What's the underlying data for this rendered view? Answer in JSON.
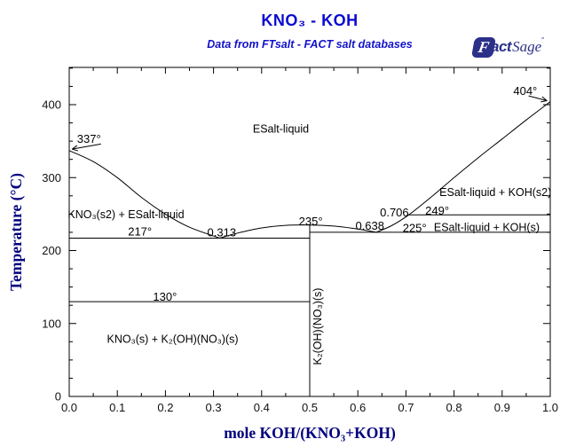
{
  "header": {
    "title": "KNO₃ - KOH",
    "subtitle": "Data from FTsalt - FACT salt databases"
  },
  "logo": {
    "f": "F",
    "act": "act",
    "sage": "Sage",
    "tm": "″"
  },
  "colors": {
    "title_blue": "#0a0ad2",
    "subtitle_blue": "#1212cc",
    "axis_title_navy": "#00007d",
    "logo_navy": "#2b3088",
    "line_color": "#000000",
    "background": "#ffffff"
  },
  "chart_data": {
    "type": "line",
    "subtype": "binary-phase-diagram",
    "title": "KNO₃ - KOH",
    "xlabel": "mole KOH/(KNO₃+KOH)",
    "ylabel": "Temperature (°C)",
    "xlim": [
      0.0,
      1.0
    ],
    "ylim": [
      0,
      451
    ],
    "grid": false,
    "x_major_ticks": [
      0.0,
      0.1,
      0.2,
      0.3,
      0.4,
      0.5,
      0.6,
      0.7,
      0.8,
      0.9,
      1.0
    ],
    "x_tick_labels": [
      "0.0",
      "0.1",
      "0.2",
      "0.3",
      "0.4",
      "0.5",
      "0.6",
      "0.7",
      "0.8",
      "0.9",
      "1.0"
    ],
    "x_minor_step": 0.05,
    "y_major_ticks": [
      0,
      100,
      200,
      300,
      400
    ],
    "y_minor_step": 25,
    "series": [
      {
        "name": "liquidus-KNO3-s2",
        "points": [
          [
            0,
            337
          ],
          [
            0.05,
            322
          ],
          [
            0.1,
            300
          ],
          [
            0.15,
            273
          ],
          [
            0.2,
            250
          ],
          [
            0.25,
            232
          ],
          [
            0.313,
            217
          ]
        ]
      },
      {
        "name": "liquidus-K2OHNO3-dome",
        "points": [
          [
            0.313,
            217
          ],
          [
            0.35,
            224
          ],
          [
            0.4,
            231
          ],
          [
            0.45,
            234.5
          ],
          [
            0.5,
            235
          ],
          [
            0.55,
            233.5
          ],
          [
            0.6,
            229.5
          ],
          [
            0.638,
            225
          ]
        ]
      },
      {
        "name": "liquidus-KOH",
        "points": [
          [
            0.638,
            225
          ],
          [
            0.67,
            234
          ],
          [
            0.706,
            249
          ],
          [
            0.75,
            272
          ],
          [
            0.8,
            300
          ],
          [
            0.85,
            327
          ],
          [
            0.9,
            353
          ],
          [
            0.95,
            379
          ],
          [
            1.0,
            404
          ]
        ]
      },
      {
        "name": "eutectic-isotherm-217",
        "points": [
          [
            0,
            217
          ],
          [
            0.5,
            217
          ]
        ]
      },
      {
        "name": "eutectic-isotherm-225",
        "points": [
          [
            0.5,
            225
          ],
          [
            1.0,
            225
          ]
        ]
      },
      {
        "name": "peritectic-isotherm-249",
        "points": [
          [
            0.706,
            249
          ],
          [
            1.0,
            249
          ]
        ]
      },
      {
        "name": "solid-isotherm-130",
        "points": [
          [
            0,
            130
          ],
          [
            0.5,
            130
          ]
        ]
      },
      {
        "name": "compound-line-K2OHNO3",
        "points": [
          [
            0.5,
            0
          ],
          [
            0.5,
            235
          ]
        ]
      }
    ],
    "point_labels": [
      {
        "text": "337°",
        "x": 0.041,
        "T": 353
      },
      {
        "text": "404°",
        "x": 0.948,
        "T": 419
      },
      {
        "text": "217°",
        "x": 0.147,
        "T": 226
      },
      {
        "text": "0.313",
        "x": 0.317,
        "T": 225
      },
      {
        "text": "235°",
        "x": 0.502,
        "T": 240
      },
      {
        "text": "0.638",
        "x": 0.625,
        "T": 234
      },
      {
        "text": "225°",
        "x": 0.718,
        "T": 231
      },
      {
        "text": "0.706",
        "x": 0.676,
        "T": 252
      },
      {
        "text": "249°",
        "x": 0.765,
        "T": 255
      },
      {
        "text": "130°",
        "x": 0.199,
        "T": 137
      }
    ],
    "region_labels": [
      {
        "text": "ESalt-liquid",
        "x": 0.44,
        "T": 367,
        "rot": 0
      },
      {
        "text": "KNO₃(s2) + ESalt-liquid",
        "x": 0.118,
        "T": 250,
        "rot": 0
      },
      {
        "text": "ESalt-liquid + KOH(s2)",
        "x": 0.886,
        "T": 280,
        "rot": 0
      },
      {
        "text": "ESalt-liquid + KOH(s)",
        "x": 0.868,
        "T": 232,
        "rot": 0
      },
      {
        "text": "KNO₃(s) + K₂(OH)(NO₃)(s)",
        "x": 0.215,
        "T": 79,
        "rot": 0
      },
      {
        "text": "K₂(OH)(NO₃)(s)",
        "x": 0.516,
        "T": 96,
        "rot": -90
      }
    ],
    "arrows": [
      {
        "from": [
          0.066,
          346
        ],
        "to": [
          0.006,
          339
        ]
      },
      {
        "from": [
          0.955,
          412
        ],
        "to": [
          0.993,
          405.5
        ]
      }
    ]
  }
}
